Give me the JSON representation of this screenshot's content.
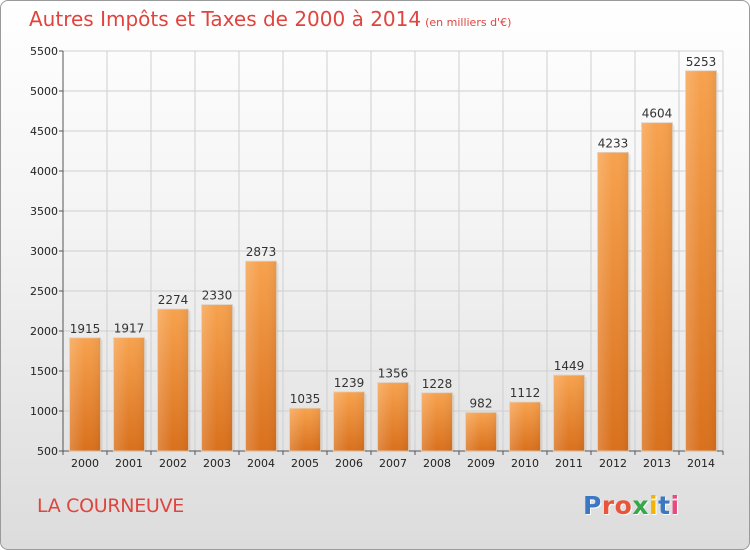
{
  "header": {
    "title": "Autres Impôts et Taxes de 2000 à 2014",
    "unit": "(en milliers d'€)"
  },
  "footer": {
    "city": "LA COURNEUVE",
    "brand": "Proxiti",
    "brand_colors": [
      "#3b78c3",
      "#e8553a",
      "#e8553a",
      "#35a849",
      "#f2b400",
      "#3b78c3",
      "#e84a7f"
    ]
  },
  "chart_data": {
    "type": "bar",
    "title": "Autres Impôts et Taxes de 2000 à 2014",
    "subtitle": "(en milliers d'€)",
    "xlabel": "",
    "ylabel": "",
    "categories": [
      "2000",
      "2001",
      "2002",
      "2003",
      "2004",
      "2005",
      "2006",
      "2007",
      "2008",
      "2009",
      "2010",
      "2011",
      "2012",
      "2013",
      "2014"
    ],
    "values": [
      1915,
      1917,
      2274,
      2330,
      2873,
      1035,
      1239,
      1356,
      1228,
      982,
      1112,
      1449,
      4233,
      4604,
      5253
    ],
    "ylim": [
      500,
      5500
    ],
    "yticks": [
      500,
      1000,
      1500,
      2000,
      2500,
      3000,
      3500,
      4000,
      4500,
      5000,
      5500
    ],
    "grid": true,
    "bar_color_top": "#f7a24e",
    "bar_color_bottom": "#d9701c",
    "legend": "none"
  }
}
